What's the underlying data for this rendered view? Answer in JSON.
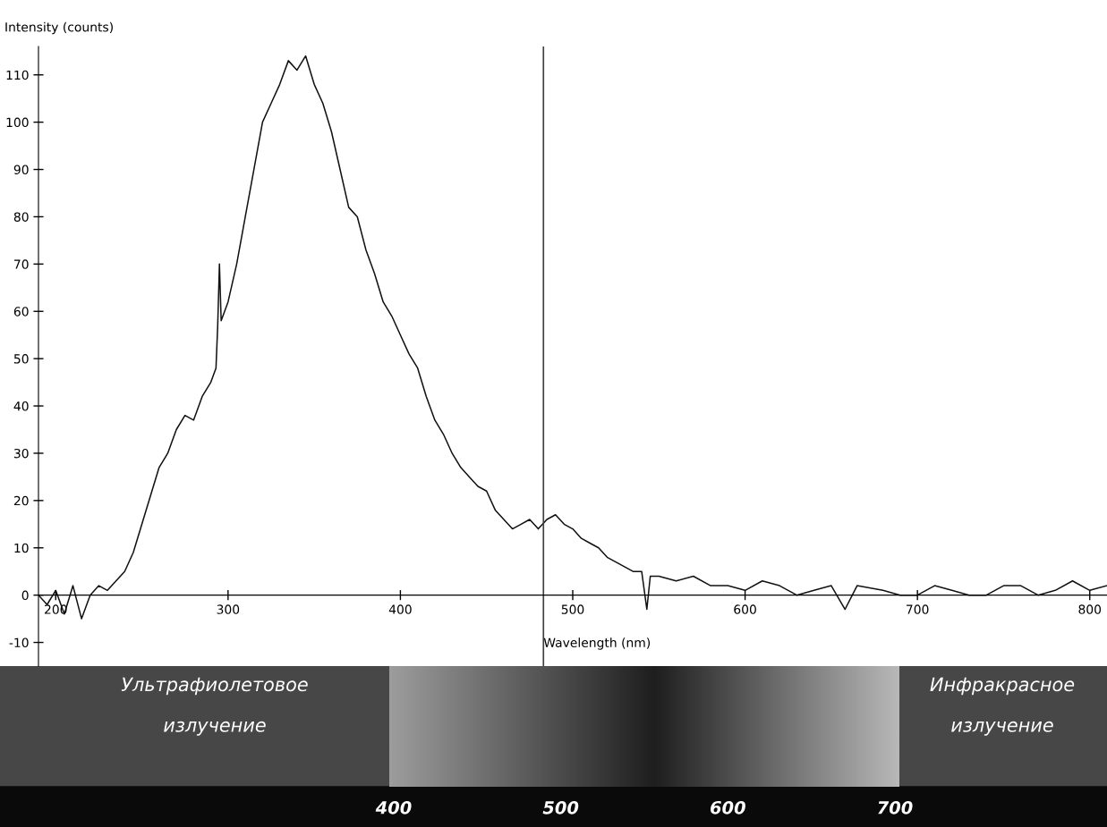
{
  "chart_data": {
    "type": "line",
    "xlabel": "Wavelength (nm)",
    "ylabel": "Intensity (counts)",
    "xlim": [
      190,
      810
    ],
    "ylim": [
      -15,
      116
    ],
    "xticks": [
      200,
      300,
      400,
      500,
      600,
      700,
      800
    ],
    "yticks": [
      -10,
      0,
      10,
      20,
      30,
      40,
      50,
      60,
      70,
      80,
      90,
      100,
      110
    ],
    "grid": false,
    "marker": "none",
    "line_style": "solid",
    "ref_lines": [
      {
        "axis": "x",
        "value": 483,
        "color": "#404040"
      }
    ],
    "annotations": [
      "Ультрафиолетовое\nизлучение",
      "Инфракрасное\nизлучение",
      "400",
      "500",
      "600",
      "700"
    ],
    "series": [
      {
        "color": "#111111",
        "x": [
          190,
          195,
          200,
          205,
          210,
          215,
          220,
          225,
          230,
          235,
          240,
          245,
          250,
          255,
          260,
          265,
          270,
          275,
          280,
          285,
          290,
          293,
          294,
          295,
          296,
          300,
          305,
          310,
          315,
          320,
          325,
          330,
          335,
          340,
          345,
          350,
          355,
          360,
          365,
          370,
          375,
          380,
          385,
          390,
          395,
          400,
          405,
          410,
          415,
          420,
          425,
          430,
          435,
          440,
          445,
          450,
          455,
          460,
          465,
          470,
          475,
          480,
          485,
          490,
          495,
          500,
          505,
          510,
          515,
          520,
          525,
          530,
          535,
          540,
          543,
          545,
          550,
          560,
          570,
          580,
          590,
          600,
          610,
          620,
          630,
          640,
          650,
          658,
          665,
          680,
          690,
          700,
          710,
          720,
          730,
          740,
          750,
          760,
          770,
          780,
          790,
          800,
          810
        ],
        "values": [
          0,
          -2,
          1,
          -4,
          2,
          -5,
          0,
          2,
          1,
          3,
          5,
          9,
          15,
          21,
          27,
          30,
          35,
          38,
          37,
          42,
          45,
          48,
          57,
          70,
          58,
          62,
          70,
          80,
          90,
          100,
          104,
          108,
          113,
          111,
          114,
          108,
          104,
          98,
          90,
          82,
          80,
          73,
          68,
          62,
          59,
          55,
          51,
          48,
          42,
          37,
          34,
          30,
          27,
          25,
          23,
          22,
          18,
          16,
          14,
          15,
          16,
          14,
          16,
          17,
          15,
          14,
          12,
          11,
          10,
          8,
          7,
          6,
          5,
          5,
          -3,
          4,
          4,
          3,
          4,
          2,
          2,
          1,
          3,
          2,
          0,
          1,
          2,
          -3,
          2,
          1,
          0,
          0,
          2,
          1,
          0,
          0,
          2,
          2,
          0,
          1,
          3,
          1,
          2
        ]
      }
    ]
  }
}
